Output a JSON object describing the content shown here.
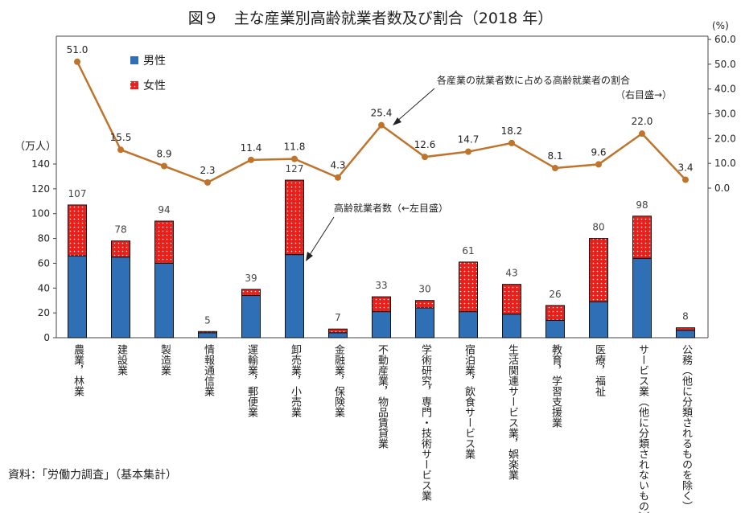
{
  "title": "図９　主な産業別高齢就業者数及び割合（2018 年）",
  "source": "資料：「労働力調査」（基本集計）",
  "chart_data": {
    "type": "bar+line",
    "title": "図９　主な産業別高齢就業者数及び割合（2018 年）",
    "left_axis": {
      "unit": "（万人）",
      "range": [
        0,
        140
      ],
      "ticks": [
        0,
        20,
        40,
        60,
        80,
        100,
        120,
        140
      ]
    },
    "right_axis": {
      "unit": "(%)",
      "range": [
        0,
        60
      ],
      "ticks": [
        "0.0",
        "10.0",
        "20.0",
        "30.0",
        "40.0",
        "50.0",
        "60.0"
      ]
    },
    "categories": [
      "農業，林業",
      "建設業",
      "製造業",
      "情報通信業",
      "運輸業，郵便業",
      "卸売業，小売業",
      "金融業，保険業",
      "不動産業，物品賃貸業",
      "学術研究，専門・技術サービス業",
      "宿泊業，飲食サービス業",
      "生活関連サービス業，娯楽業",
      "教育，学習支援業",
      "医療，福祉",
      "サービス業（他に分類されないもの）",
      "公務（他に分類されるものを除く）"
    ],
    "series": [
      {
        "name": "男性",
        "type": "stacked-bar",
        "color": "#2e6fb5",
        "values": [
          66,
          65,
          60,
          4,
          34,
          67,
          4,
          21,
          24,
          21,
          19,
          14,
          29,
          64,
          6
        ]
      },
      {
        "name": "女性",
        "type": "stacked-bar",
        "color": "#e8201c",
        "values": [
          41,
          13,
          34,
          1,
          5,
          60,
          3,
          12,
          6,
          40,
          24,
          12,
          51,
          34,
          2
        ]
      },
      {
        "type": "line",
        "axis": "right",
        "color": "#c0732a",
        "values": [
          51.0,
          15.5,
          8.9,
          2.3,
          11.4,
          11.8,
          4.3,
          25.4,
          12.6,
          14.7,
          18.2,
          8.1,
          9.6,
          22.0,
          3.4
        ]
      }
    ],
    "totals": [
      107,
      78,
      94,
      5,
      39,
      127,
      7,
      33,
      30,
      61,
      43,
      26,
      80,
      98,
      8
    ],
    "line_labels": [
      "51.0",
      "15.5",
      "8.9",
      "2.3",
      "11.4",
      "11.8",
      "4.3",
      "25.4",
      "12.6",
      "14.7",
      "18.2",
      "8.1",
      "9.6",
      "22.0",
      "3.4"
    ],
    "annotations": {
      "line_note": "各産業の就業者数に占める高齢就業者の割合",
      "line_note2": "（右目盛→）",
      "bar_note": "高齢就業者数（←左目盛）"
    },
    "legend": {
      "placement": "top-left"
    }
  }
}
